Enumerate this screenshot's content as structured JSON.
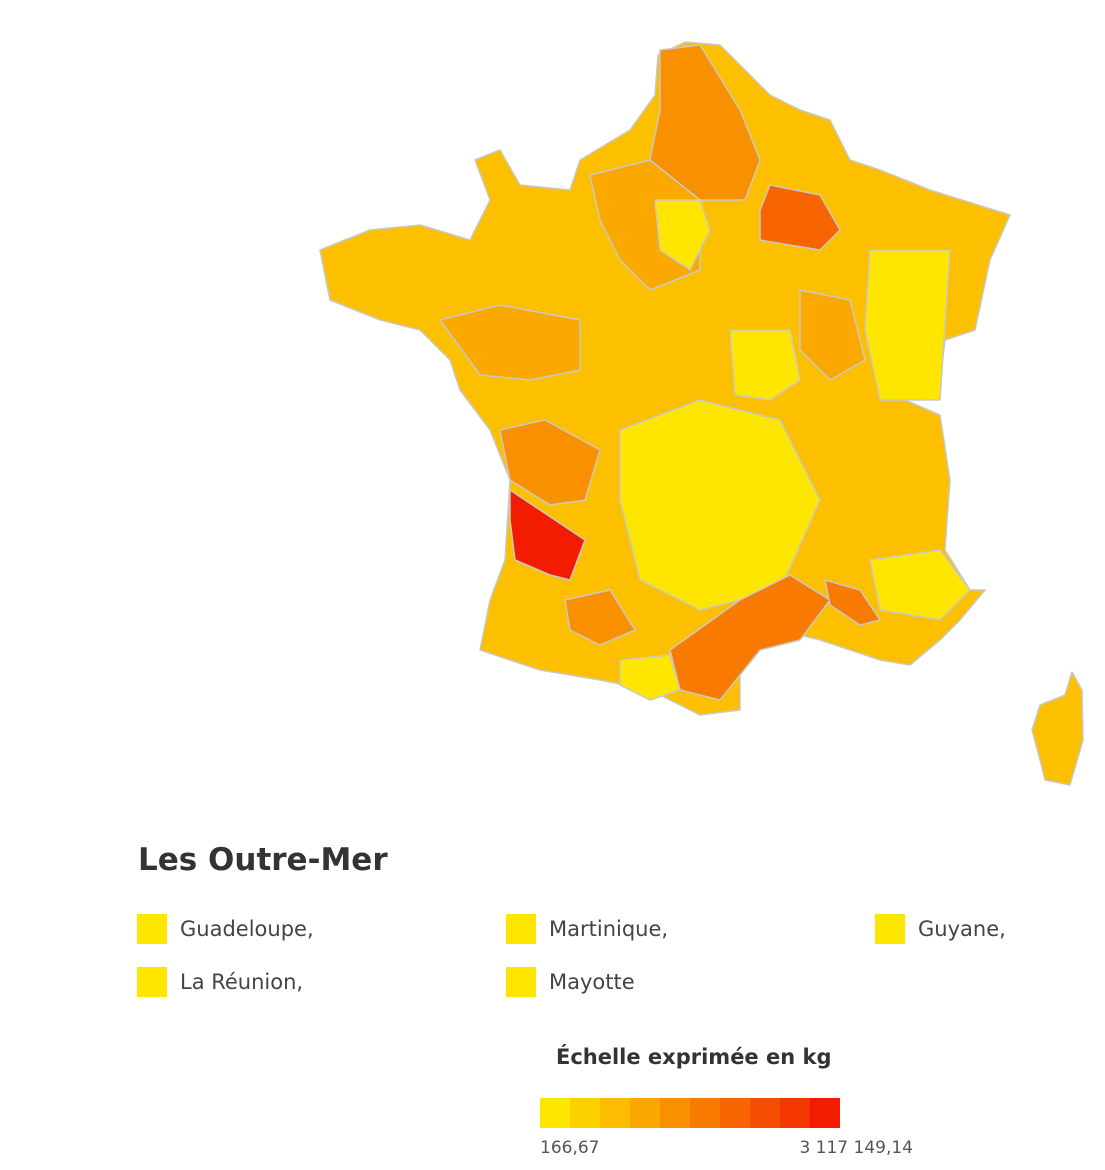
{
  "outre_mer": {
    "title": "Les Outre-Mer",
    "color": "#ffe600",
    "items": [
      "Guadeloupe,",
      "Martinique,",
      "Guyane,",
      "La Réunion,",
      "Mayotte"
    ]
  },
  "legend": {
    "title": "Échelle exprimée en kg",
    "min": "166,67",
    "max": "3 117 149,14",
    "colors": [
      "#ffe600",
      "#fdd000",
      "#fcbc00",
      "#fba800",
      "#f99000",
      "#f87a00",
      "#f76400",
      "#f54e00",
      "#f43600",
      "#f21c00"
    ]
  }
}
